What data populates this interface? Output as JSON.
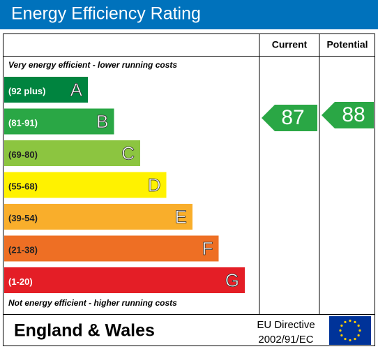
{
  "title": "Energy Efficiency Rating",
  "headers": {
    "current": "Current",
    "potential": "Potential"
  },
  "top_note": "Very energy efficient - lower running costs",
  "bottom_note": "Not energy efficient - higher running costs",
  "bands": [
    {
      "range": "(92 plus)",
      "letter": "A",
      "color": "#00843f"
    },
    {
      "range": "(81-91)",
      "letter": "B",
      "color": "#2aa745"
    },
    {
      "range": "(69-80)",
      "letter": "C",
      "color": "#8cc540"
    },
    {
      "range": "(55-68)",
      "letter": "D",
      "color": "#fff200"
    },
    {
      "range": "(39-54)",
      "letter": "E",
      "color": "#f9ae2b"
    },
    {
      "range": "(21-38)",
      "letter": "F",
      "color": "#ee6f24"
    },
    {
      "range": "(1-20)",
      "letter": "G",
      "color": "#e41e26"
    }
  ],
  "current": {
    "value": 87,
    "color": "#2aa745"
  },
  "potential": {
    "value": 88,
    "color": "#2aa745"
  },
  "footer": {
    "region": "England & Wales",
    "directive": [
      "EU Directive",
      "2002/91/EC"
    ]
  }
}
